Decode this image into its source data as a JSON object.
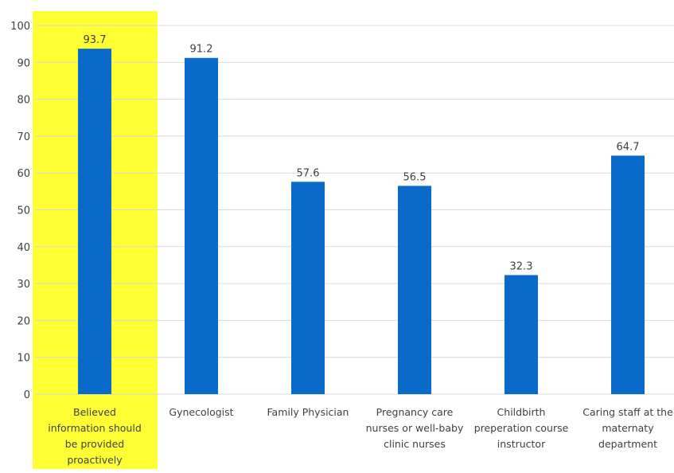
{
  "chart_data": {
    "type": "bar",
    "title": "",
    "xlabel": "",
    "ylabel": "",
    "ylim": [
      0,
      100
    ],
    "yticks": [
      0,
      10,
      20,
      30,
      40,
      50,
      60,
      70,
      80,
      90,
      100
    ],
    "grid": true,
    "legend": "none",
    "categories": [
      "Believed information should be provided proactively",
      "Gynecologist",
      "Family Physician",
      "Pregnancy care nurses or well-baby clinic nurses",
      "Childbirth preperation course instructor",
      "Caring staff at the maternaty department"
    ],
    "category_label_lines": [
      [
        "Believed",
        "information should",
        "be provided",
        "proactively"
      ],
      [
        "Gynecologist"
      ],
      [
        "Family Physician"
      ],
      [
        "Pregnancy care",
        "nurses or well-baby",
        "clinic nurses"
      ],
      [
        "Childbirth",
        "preperation course",
        "instructor"
      ],
      [
        "Caring staff at the",
        "maternaty",
        "department"
      ]
    ],
    "values": [
      93.7,
      91.2,
      57.6,
      56.5,
      32.3,
      64.7
    ],
    "data_labels": [
      "93.7",
      "91.2",
      "57.6",
      "56.5",
      "32.3",
      "64.7"
    ],
    "highlighted_category_index": 0,
    "colors": {
      "bar": "#0a6ac9",
      "highlight": "#ffff33",
      "grid": "#d9d9d9",
      "text": "#404040"
    }
  }
}
